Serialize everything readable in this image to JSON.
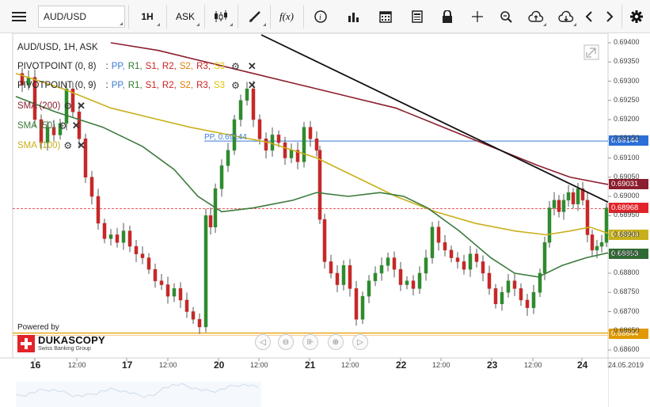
{
  "toolbar": {
    "symbol": "AUD/USD",
    "timeframe": "1H",
    "side": "ASK",
    "icons": [
      "menu-icon",
      "candles-icon",
      "draw-pen-icon",
      "function-icon",
      "info-icon",
      "volume-bars-icon",
      "calendar-icon",
      "news-icon",
      "lock-icon",
      "crosshair-icon",
      "zoom-icon",
      "cloud-upload-icon",
      "cloud-download-icon",
      "chevron-left-icon",
      "chevron-right-icon",
      "gear-icon"
    ],
    "function_label": "f(x)"
  },
  "legend": {
    "title": "AUD/USD, 1H, ASK",
    "pivot1": "PIVOTPOINT (0, 8)",
    "pivot2": "PIVOTPOINT (0, 9)",
    "pivot_sep": ":",
    "pp": "PP,",
    "r1": "R1,",
    "s1": "S1,",
    "r2": "R2,",
    "s2": "S2,",
    "r3": "R3,",
    "s3": "S3",
    "sma200": "SMA (200)",
    "sma50": "SMA (50)",
    "sma100": "SMA (100)",
    "colors": {
      "pp": "#3a7bd5",
      "r1": "#2f7a2f",
      "s1": "#cc1f1f",
      "r2": "#cc1f1f",
      "s2": "#e07b00",
      "r3": "#cc1f1f",
      "s3": "#e0c200",
      "sma200": "#8b1e2e",
      "sma50": "#3c7a3c",
      "sma100": "#c9b01a"
    }
  },
  "pp_tag": "PP, 0.69144",
  "price_labels": {
    "pp": "0.69144",
    "sma200": "0.69031",
    "current": "0.68968",
    "sma100": "0.68904",
    "sma50": "0.68853",
    "bottom": "0.68644"
  },
  "y_axis": [
    "0.69400",
    "0.69350",
    "0.69300",
    "0.69250",
    "0.69200",
    "0.69150",
    "0.69100",
    "0.69050",
    "0.69000",
    "0.68950",
    "0.68900",
    "0.68850",
    "0.68800",
    "0.68750",
    "0.68700",
    "0.68650",
    "0.68600"
  ],
  "x_axis": [
    {
      "label": "16",
      "big": true
    },
    {
      "label": "12:00",
      "big": false
    },
    {
      "label": "17",
      "big": true
    },
    {
      "label": "12:00",
      "big": false
    },
    {
      "label": "20",
      "big": true
    },
    {
      "label": "12:00",
      "big": false
    },
    {
      "label": "21",
      "big": true
    },
    {
      "label": "12:00",
      "big": false
    },
    {
      "label": "22",
      "big": true
    },
    {
      "label": "12:00",
      "big": false
    },
    {
      "label": "23",
      "big": true
    },
    {
      "label": "12:00",
      "big": false
    },
    {
      "label": "24",
      "big": true
    }
  ],
  "date_tag": "24.05.2019",
  "branding": {
    "powered": "Powered by",
    "name": "DUKASCOPY",
    "sub": "Swiss Banking Group"
  },
  "nav_icons": [
    "pan-left-icon",
    "zoom-out-icon",
    "fit-icon",
    "zoom-in-icon",
    "pan-right-icon"
  ]
}
